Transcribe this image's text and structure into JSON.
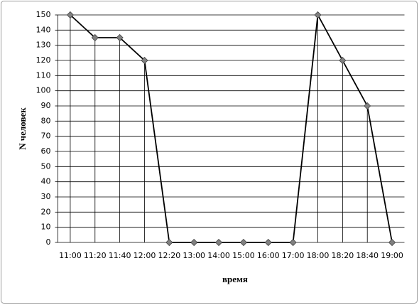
{
  "chart_data": {
    "type": "line",
    "categories": [
      "11:00",
      "11:20",
      "11:40",
      "12:00",
      "12:20",
      "13:00",
      "14:00",
      "15:00",
      "16:00",
      "17:00",
      "18:00",
      "18:20",
      "18:40",
      "19:00"
    ],
    "values": [
      150,
      135,
      135,
      120,
      0,
      0,
      0,
      0,
      0,
      0,
      150,
      120,
      90,
      0
    ],
    "color": "#000000",
    "marker_color": "#808080",
    "x_label": "время",
    "y_label": "N человек",
    "ylim": [
      0,
      150
    ],
    "yticks": [
      0,
      10,
      20,
      30,
      40,
      50,
      60,
      70,
      80,
      90,
      100,
      110,
      120,
      130,
      140,
      150
    ],
    "grid": true,
    "drop_lines": true
  }
}
